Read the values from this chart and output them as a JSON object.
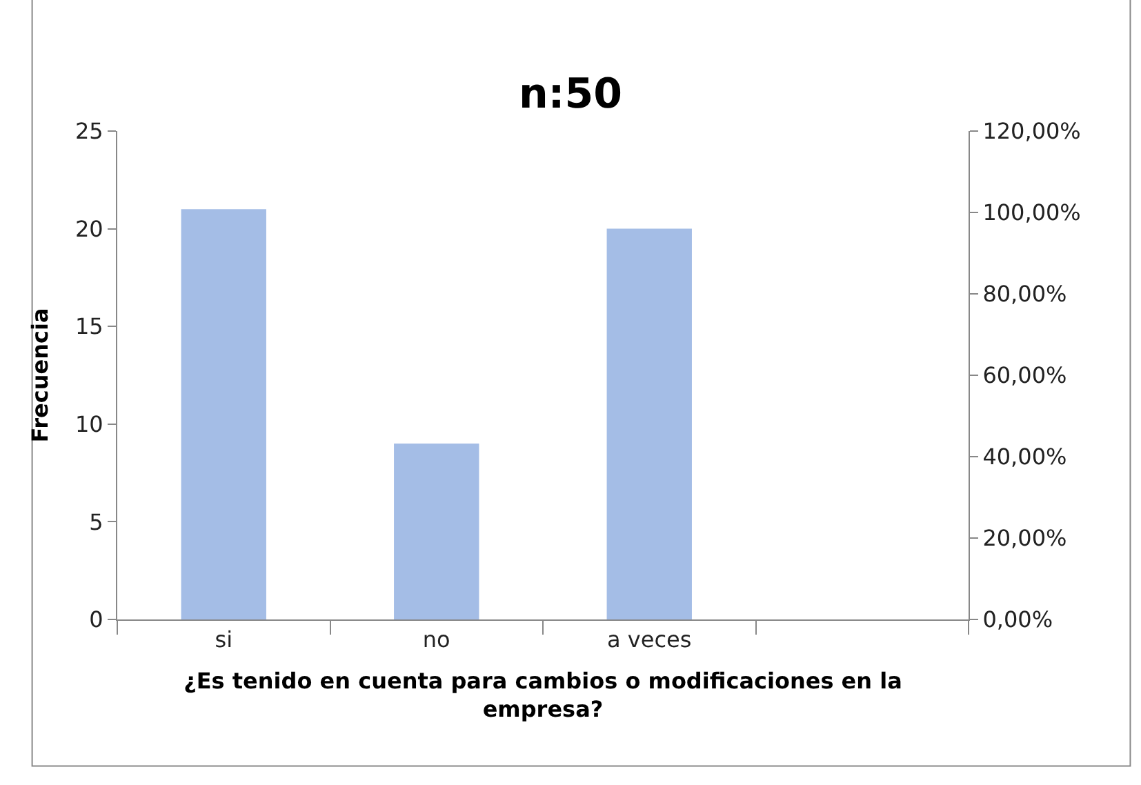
{
  "chart_data": {
    "type": "bar",
    "title": "n:50",
    "xlabel": "¿Es tenido en cuenta para cambios o modificaciones en la empresa?",
    "ylabel": "Frecuencia",
    "categories": [
      "si",
      "no",
      "a veces",
      null
    ],
    "series": [
      {
        "color": "#a4bde6",
        "values": [
          21,
          9,
          20,
          null
        ]
      }
    ],
    "ylim": [
      0,
      25
    ],
    "yticks": [
      0,
      5,
      10,
      15,
      20,
      25
    ],
    "y2lim": [
      0,
      120
    ],
    "y2ticks": [
      {
        "value": 0,
        "label": "0,00%"
      },
      {
        "value": 20,
        "label": "20,00%"
      },
      {
        "value": 40,
        "label": "40,00%"
      },
      {
        "value": 60,
        "label": "60,00%"
      },
      {
        "value": 80,
        "label": "80,00%"
      },
      {
        "value": 100,
        "label": "100,00%"
      },
      {
        "value": 120,
        "label": "120,00%"
      }
    ]
  }
}
